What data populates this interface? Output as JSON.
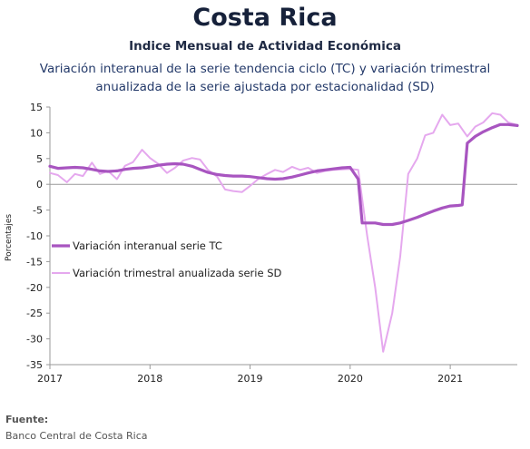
{
  "colors": {
    "tc": "#a855c0",
    "sd": "#e5a8ee",
    "axis": "#999999",
    "grid": "#dddddd"
  },
  "chart_data": {
    "type": "line",
    "title": "Costa Rica",
    "subtitle": "Indice Mensual de  Actividad Económica",
    "description_line1": "Variación interanual de la serie tendencia ciclo (TC) y variación trimestral",
    "description_line2": "anualizada de la serie ajustada por estacionalidad (SD)",
    "ylabel": "Porcentajes",
    "xlabel": "",
    "ylim": [
      -35,
      15
    ],
    "yticks": [
      15,
      10,
      5,
      0,
      -5,
      -10,
      -15,
      -20,
      -25,
      -30,
      -35
    ],
    "xlim": [
      2017,
      2021.67
    ],
    "xticks": [
      "2017",
      "2018",
      "2019",
      "2020",
      "2021"
    ],
    "legend_position": "left-middle",
    "series": [
      {
        "name": "Variación interanual serie TC",
        "x": [
          2017.0,
          2017.08,
          2017.17,
          2017.25,
          2017.33,
          2017.42,
          2017.5,
          2017.58,
          2017.67,
          2017.75,
          2017.83,
          2017.92,
          2018.0,
          2018.08,
          2018.17,
          2018.25,
          2018.33,
          2018.42,
          2018.5,
          2018.58,
          2018.67,
          2018.75,
          2018.83,
          2018.92,
          2019.0,
          2019.08,
          2019.17,
          2019.25,
          2019.33,
          2019.42,
          2019.5,
          2019.58,
          2019.67,
          2019.75,
          2019.83,
          2019.92,
          2020.0,
          2020.08,
          2020.12,
          2020.17,
          2020.25,
          2020.33,
          2020.42,
          2020.5,
          2020.58,
          2020.67,
          2020.75,
          2020.83,
          2020.92,
          2021.0,
          2021.08,
          2021.12,
          2021.17,
          2021.25,
          2021.33,
          2021.42,
          2021.5,
          2021.58,
          2021.67
        ],
        "y": [
          3.5,
          3.1,
          3.2,
          3.3,
          3.2,
          2.9,
          2.6,
          2.5,
          2.6,
          2.9,
          3.1,
          3.2,
          3.4,
          3.7,
          3.9,
          4.0,
          3.9,
          3.5,
          2.9,
          2.3,
          1.9,
          1.7,
          1.6,
          1.6,
          1.5,
          1.3,
          1.1,
          1.0,
          1.1,
          1.4,
          1.8,
          2.2,
          2.6,
          2.8,
          3.0,
          3.2,
          3.3,
          1.0,
          -7.5,
          -7.5,
          -7.5,
          -7.8,
          -7.8,
          -7.5,
          -7.0,
          -6.4,
          -5.8,
          -5.2,
          -4.6,
          -4.2,
          -4.1,
          -4.0,
          8.0,
          9.3,
          10.2,
          11.0,
          11.6,
          11.6,
          11.4
        ]
      },
      {
        "name": "Variación trimestral anualizada serie SD",
        "x": [
          2017.0,
          2017.08,
          2017.17,
          2017.25,
          2017.33,
          2017.42,
          2017.5,
          2017.58,
          2017.67,
          2017.75,
          2017.83,
          2017.92,
          2018.0,
          2018.08,
          2018.17,
          2018.25,
          2018.33,
          2018.42,
          2018.5,
          2018.58,
          2018.67,
          2018.75,
          2018.83,
          2018.92,
          2019.0,
          2019.08,
          2019.17,
          2019.25,
          2019.33,
          2019.42,
          2019.5,
          2019.58,
          2019.67,
          2019.75,
          2019.83,
          2019.92,
          2020.0,
          2020.08,
          2020.17,
          2020.25,
          2020.33,
          2020.42,
          2020.5,
          2020.58,
          2020.67,
          2020.75,
          2020.83,
          2020.92,
          2021.0,
          2021.08,
          2021.17,
          2021.25,
          2021.33,
          2021.42,
          2021.5,
          2021.58,
          2021.67
        ],
        "y": [
          2.2,
          1.8,
          0.4,
          2.0,
          1.6,
          4.2,
          2.0,
          2.6,
          1.0,
          3.6,
          4.3,
          6.7,
          5.1,
          4.0,
          2.2,
          3.2,
          4.6,
          5.1,
          4.8,
          2.8,
          1.5,
          -1.0,
          -1.3,
          -1.5,
          -0.3,
          1.0,
          2.0,
          2.8,
          2.4,
          3.4,
          2.8,
          3.2,
          2.2,
          2.6,
          2.8,
          2.9,
          3.0,
          2.8,
          -10.0,
          -20.0,
          -32.5,
          -25.0,
          -14.0,
          2.0,
          5.0,
          9.5,
          10.0,
          13.5,
          11.5,
          11.8,
          9.3,
          11.2,
          12.0,
          13.8,
          13.5,
          12.0,
          11.5
        ]
      }
    ]
  },
  "source": {
    "label": "Fuente:",
    "text": "Banco Central de Costa Rica"
  }
}
